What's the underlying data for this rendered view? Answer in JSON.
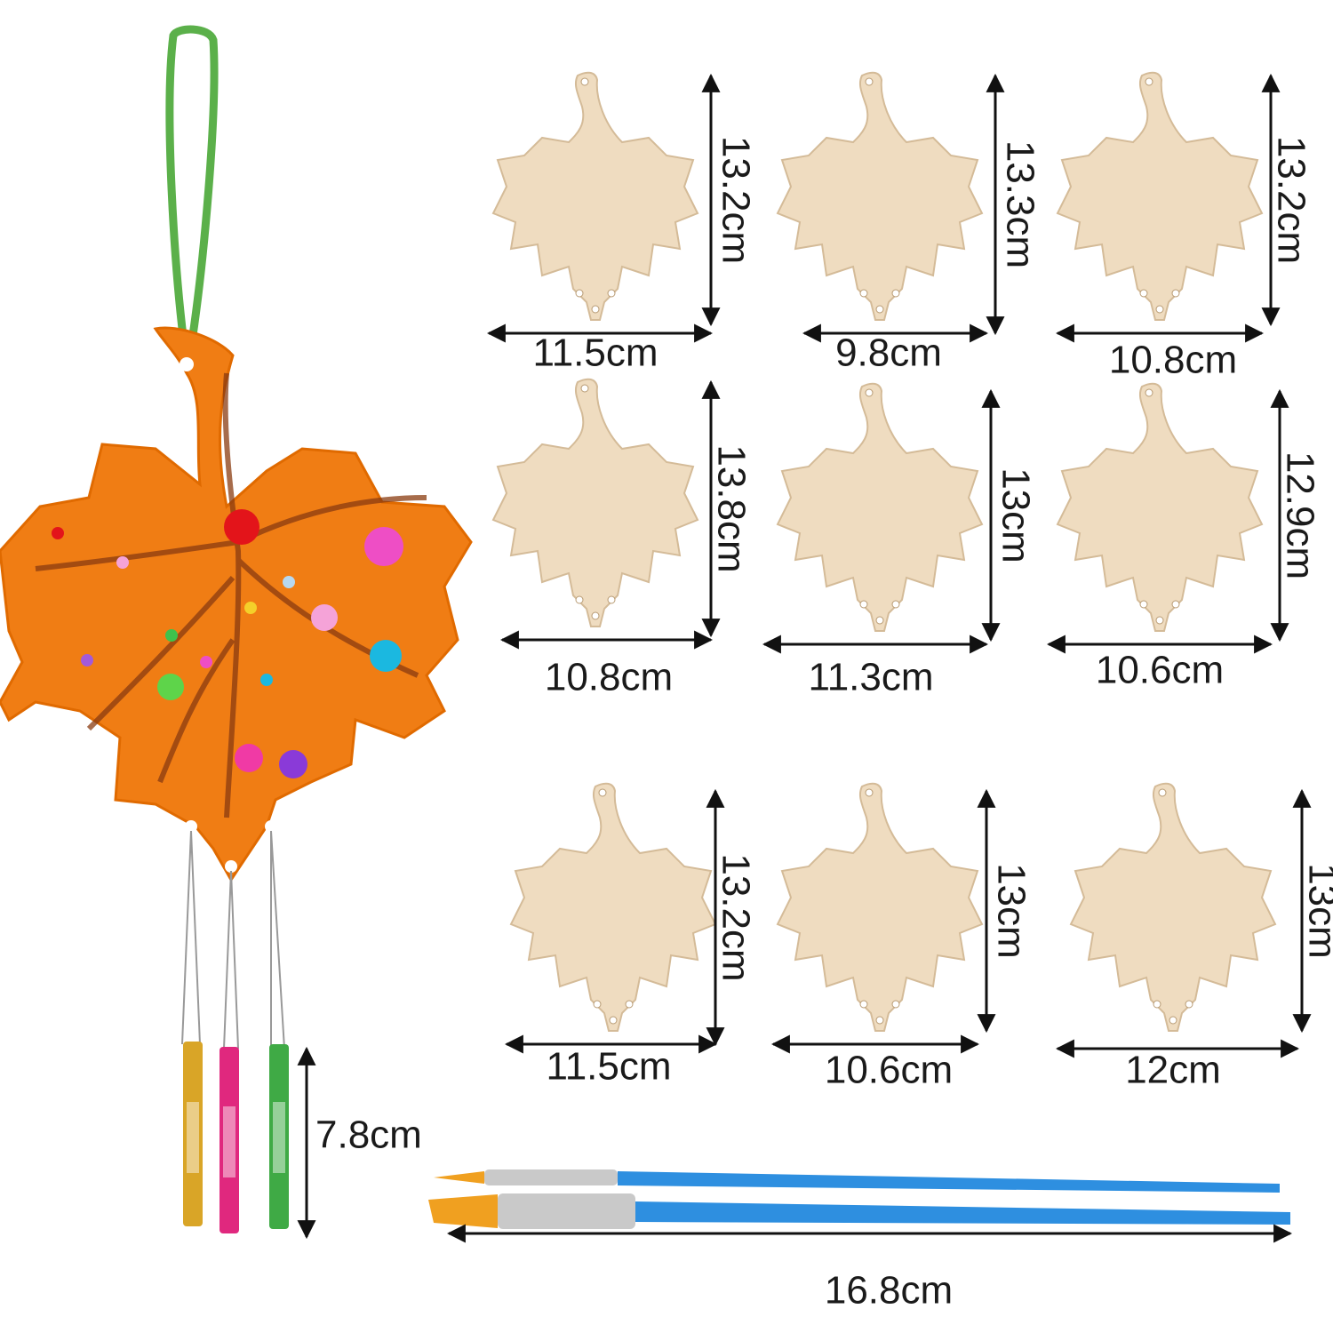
{
  "leaves": [
    {
      "height": "13.2cm",
      "width": "11.5cm"
    },
    {
      "height": "13.3cm",
      "width": "9.8cm"
    },
    {
      "height": "13.2cm",
      "width": "10.8cm"
    },
    {
      "height": "13.8cm",
      "width": "10.8cm"
    },
    {
      "height": "13cm",
      "width": "11.3cm"
    },
    {
      "height": "12.9cm",
      "width": "10.6cm"
    },
    {
      "height": "13.2cm",
      "width": "11.5cm"
    },
    {
      "height": "13cm",
      "width": "10.6cm"
    },
    {
      "height": "13cm",
      "width": "12cm"
    }
  ],
  "chimes": {
    "length": "7.8cm"
  },
  "brush": {
    "length": "16.8cm"
  }
}
